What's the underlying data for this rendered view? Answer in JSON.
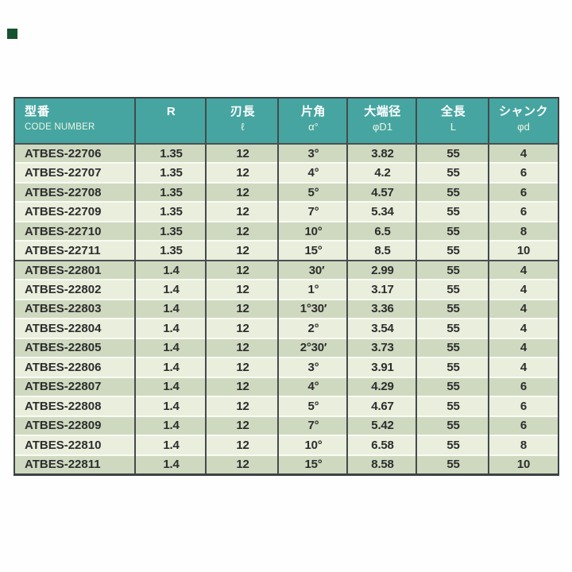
{
  "page": {
    "corner_marker_color": "#14532d",
    "background": "#fefefe"
  },
  "table": {
    "header": [
      {
        "jp": "型番",
        "sub": "CODE NUMBER"
      },
      {
        "jp": "R",
        "sub": ""
      },
      {
        "jp": "刃長",
        "sub": "ℓ"
      },
      {
        "jp": "片角",
        "sub": "α°"
      },
      {
        "jp": "大端径",
        "sub": "φD1"
      },
      {
        "jp": "全長",
        "sub": "L"
      },
      {
        "jp": "シャンク",
        "sub": "φd"
      }
    ],
    "rows": [
      [
        "ATBES-22706",
        "1.35",
        "12",
        "3°",
        "3.82",
        "55",
        "4"
      ],
      [
        "ATBES-22707",
        "1.35",
        "12",
        "4°",
        "4.2",
        "55",
        "6"
      ],
      [
        "ATBES-22708",
        "1.35",
        "12",
        "5°",
        "4.57",
        "55",
        "6"
      ],
      [
        "ATBES-22709",
        "1.35",
        "12",
        "7°",
        "5.34",
        "55",
        "6"
      ],
      [
        "ATBES-22710",
        "1.35",
        "12",
        "10°",
        "6.5",
        "55",
        "8"
      ],
      [
        "ATBES-22711",
        "1.35",
        "12",
        "15°",
        "8.5",
        "55",
        "10"
      ],
      [
        "ATBES-22801",
        "1.4",
        "12",
        " 30′",
        "2.99",
        "55",
        "4"
      ],
      [
        "ATBES-22802",
        "1.4",
        "12",
        "1°",
        "3.17",
        "55",
        "4"
      ],
      [
        "ATBES-22803",
        "1.4",
        "12",
        "1°30′",
        "3.36",
        "55",
        "4"
      ],
      [
        "ATBES-22804",
        "1.4",
        "12",
        "2°",
        "3.54",
        "55",
        "4"
      ],
      [
        "ATBES-22805",
        "1.4",
        "12",
        "2°30′",
        "3.73",
        "55",
        "4"
      ],
      [
        "ATBES-22806",
        "1.4",
        "12",
        "3°",
        "3.91",
        "55",
        "4"
      ],
      [
        "ATBES-22807",
        "1.4",
        "12",
        "4°",
        "4.29",
        "55",
        "6"
      ],
      [
        "ATBES-22808",
        "1.4",
        "12",
        "5°",
        "4.67",
        "55",
        "6"
      ],
      [
        "ATBES-22809",
        "1.4",
        "12",
        "7°",
        "5.42",
        "55",
        "6"
      ],
      [
        "ATBES-22810",
        "1.4",
        "12",
        "10°",
        "6.58",
        "55",
        "8"
      ],
      [
        "ATBES-22811",
        "1.4",
        "12",
        "15°",
        "8.58",
        "55",
        "10"
      ]
    ],
    "colors": {
      "header_bg": "#46a5a0",
      "header_text": "#ffffff",
      "header_subtext": "#eef5e3",
      "row_dark": "#cfd9c0",
      "row_light": "#e9eedd",
      "cell_text": "#2d2d2d",
      "border": "#3d4245",
      "column_line": "#454a4c",
      "row_line": "#fafbf3",
      "group_line": "#4b5052",
      "corner_marker": "#14532d",
      "page_bg": "#fefefe"
    }
  }
}
